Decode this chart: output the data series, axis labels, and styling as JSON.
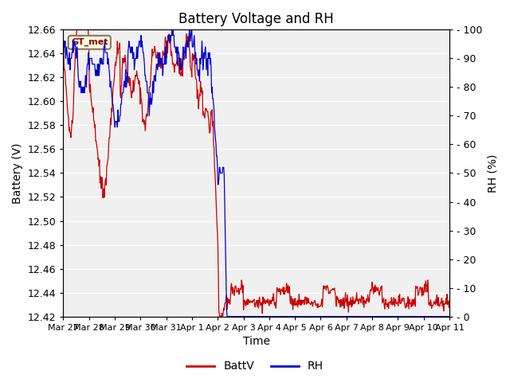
{
  "title": "Battery Voltage and RH",
  "xlabel": "Time",
  "ylabel_left": "Battery (V)",
  "ylabel_right": "RH (%)",
  "annotation_text": "GT_met",
  "ylim_left": [
    12.42,
    12.66
  ],
  "ylim_right": [
    0,
    100
  ],
  "yticks_left": [
    12.42,
    12.44,
    12.46,
    12.48,
    12.5,
    12.52,
    12.54,
    12.56,
    12.58,
    12.6,
    12.62,
    12.64,
    12.66
  ],
  "yticks_right": [
    0,
    10,
    20,
    30,
    40,
    50,
    60,
    70,
    80,
    90,
    100
  ],
  "xtick_labels": [
    "Mar 27",
    "Mar 28",
    "Mar 29",
    "Mar 30",
    "Mar 31",
    "Apr 1",
    "Apr 2",
    "Apr 3",
    "Apr 4",
    "Apr 5",
    "Apr 6",
    "Apr 7",
    "Apr 8",
    "Apr 9",
    "Apr 10",
    "Apr 11"
  ],
  "batt_color": "#CC0000",
  "rh_color": "#0000CC",
  "plot_bg": "#F0F0F0",
  "legend_labels": [
    "BattV",
    "RH"
  ],
  "title_fontsize": 12,
  "axis_label_fontsize": 10,
  "tick_fontsize": 9
}
